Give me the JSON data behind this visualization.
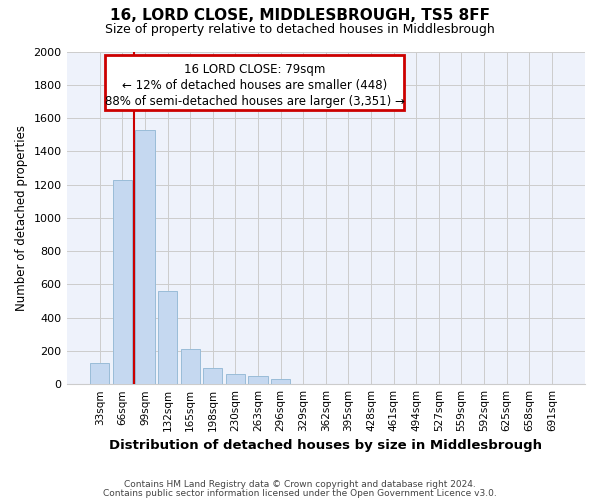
{
  "title": "16, LORD CLOSE, MIDDLESBROUGH, TS5 8FF",
  "subtitle": "Size of property relative to detached houses in Middlesbrough",
  "xlabel": "Distribution of detached houses by size in Middlesbrough",
  "ylabel": "Number of detached properties",
  "footnote1": "Contains HM Land Registry data © Crown copyright and database right 2024.",
  "footnote2": "Contains public sector information licensed under the Open Government Licence v3.0.",
  "categories": [
    "33sqm",
    "66sqm",
    "99sqm",
    "132sqm",
    "165sqm",
    "198sqm",
    "230sqm",
    "263sqm",
    "296sqm",
    "329sqm",
    "362sqm",
    "395sqm",
    "428sqm",
    "461sqm",
    "494sqm",
    "527sqm",
    "559sqm",
    "592sqm",
    "625sqm",
    "658sqm",
    "691sqm"
  ],
  "values": [
    130,
    1225,
    1530,
    560,
    210,
    95,
    60,
    50,
    30,
    0,
    0,
    0,
    0,
    0,
    0,
    0,
    0,
    0,
    0,
    0,
    0
  ],
  "bar_color": "#c5d8f0",
  "bar_edge_color": "#9abcd8",
  "annotation_text1": "16 LORD CLOSE: 79sqm",
  "annotation_text2": "← 12% of detached houses are smaller (448)",
  "annotation_text3": "88% of semi-detached houses are larger (3,351) →",
  "annotation_box_color": "#cc0000",
  "ylim": [
    0,
    2000
  ],
  "yticks": [
    0,
    200,
    400,
    600,
    800,
    1000,
    1200,
    1400,
    1600,
    1800,
    2000
  ],
  "grid_color": "#cccccc",
  "bg_color": "#ffffff",
  "plot_bg_color": "#eef2fb",
  "property_line_color": "#cc0000",
  "property_line_x": 1.5
}
